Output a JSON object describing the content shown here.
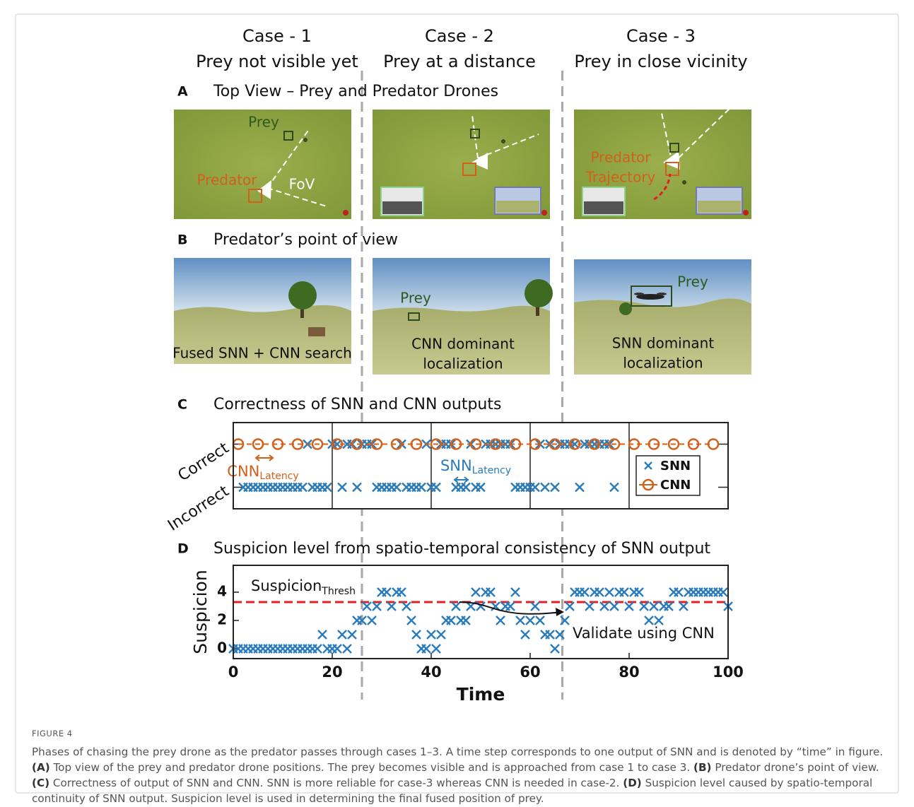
{
  "cases": [
    {
      "title": "Case - 1",
      "subtitle": "Prey not visible yet"
    },
    {
      "title": "Case - 2",
      "subtitle": "Prey at a distance"
    },
    {
      "title": "Case - 3",
      "subtitle": "Prey in close vicinity"
    }
  ],
  "case_boundaries": [
    26,
    66.5
  ],
  "panels": {
    "A": {
      "letter": "A",
      "title": "Top View – Prey and Predator Drones",
      "labels": {
        "prey": "Prey",
        "predator": "Predator",
        "fov": "FoV",
        "predator2": "Predator",
        "trajectory": "Trajectory"
      }
    },
    "B": {
      "letter": "B",
      "title": "Predator’s point of view",
      "labels": {
        "fused": "Fused SNN + CNN search",
        "prey2": "Prey",
        "cnn1": "CNN dominant",
        "cnn2": "localization",
        "prey3": "Prey",
        "snn1": "SNN dominant",
        "snn2": "localization"
      }
    }
  },
  "chart_data": [
    {
      "type": "scatter",
      "letter": "C",
      "title": "Correctness of SNN and CNN outputs",
      "xlim": [
        0,
        100
      ],
      "xticks": [
        0,
        20,
        40,
        60,
        80,
        100
      ],
      "ylim": [
        -0.5,
        1.5
      ],
      "yticks": [
        {
          "value": 0,
          "label": "Incorrect"
        },
        {
          "value": 1,
          "label": "Correct"
        }
      ],
      "grid": true,
      "legend": "right",
      "series": [
        {
          "name": "SNN",
          "color": "#2b7bba",
          "marker": "x",
          "x": [
            2,
            3,
            4,
            5,
            6,
            7,
            8,
            9,
            10,
            11,
            12,
            13,
            14,
            15,
            16,
            17,
            18,
            19,
            20,
            21,
            22,
            23,
            24,
            25,
            26,
            27,
            28,
            29,
            30,
            31,
            32,
            33,
            34,
            35,
            36,
            37,
            38,
            39,
            40,
            41,
            42,
            43,
            44,
            45,
            46,
            47,
            48,
            49,
            50,
            51,
            52,
            53,
            54,
            55,
            56,
            57,
            58,
            59,
            60,
            61,
            62,
            63,
            64,
            65,
            66,
            67,
            68,
            69,
            70,
            71,
            72,
            73,
            74,
            75,
            76,
            77
          ],
          "values": [
            0,
            0,
            0,
            0,
            0,
            0,
            0,
            0,
            0,
            0,
            0,
            0,
            0,
            1,
            0,
            0,
            0,
            0,
            1,
            1,
            0,
            1,
            1,
            0,
            1,
            1,
            1,
            0,
            0,
            0,
            0,
            0,
            1,
            0,
            0,
            0,
            0,
            1,
            0,
            0,
            1,
            1,
            1,
            0,
            0,
            0,
            1,
            0,
            0,
            1,
            1,
            1,
            1,
            1,
            1,
            0,
            0,
            0,
            0,
            0,
            1,
            0,
            1,
            0,
            1,
            1,
            1,
            1,
            0,
            1,
            1,
            1,
            1,
            1,
            1,
            0
          ]
        },
        {
          "name": "CNN",
          "color": "#d2601a",
          "marker": "o",
          "x": [
            1,
            5,
            9,
            13,
            17,
            21,
            25,
            29,
            33,
            37,
            41,
            45,
            49,
            53,
            57,
            61,
            65,
            69,
            73,
            77,
            81,
            85,
            89,
            93,
            97
          ],
          "values": [
            1,
            1,
            1,
            1,
            1,
            1,
            1,
            1,
            1,
            1,
            1,
            1,
            1,
            1,
            1,
            1,
            1,
            1,
            1,
            1,
            1,
            1,
            1,
            1,
            1
          ]
        }
      ],
      "annotations": [
        {
          "text": "CNN",
          "sub": "Latency",
          "color": "#d2601a"
        },
        {
          "text": "SNN",
          "sub": "Latency",
          "color": "#2b7bba"
        }
      ]
    },
    {
      "type": "scatter",
      "letter": "D",
      "title": "Suspicion level from spatio-temporal consistency of SNN output",
      "xlabel": "Time",
      "ylabel": "Suspicion",
      "xlim": [
        0,
        100
      ],
      "xticks": [
        0,
        20,
        40,
        60,
        80,
        100
      ],
      "ylim": [
        -0.7,
        5.9
      ],
      "yticks": [
        0,
        2,
        4
      ],
      "series": [
        {
          "color": "#2b7bba",
          "marker": "x",
          "x": [
            0,
            1,
            2,
            3,
            4,
            5,
            6,
            7,
            8,
            9,
            10,
            11,
            12,
            13,
            14,
            15,
            16,
            17,
            18,
            19,
            20,
            21,
            22,
            23,
            24,
            25,
            26,
            27,
            28,
            29,
            30,
            31,
            32,
            33,
            34,
            35,
            36,
            37,
            38,
            39,
            40,
            41,
            42,
            43,
            44,
            45,
            46,
            47,
            48,
            49,
            50,
            51,
            52,
            53,
            54,
            55,
            56,
            57,
            58,
            59,
            60,
            61,
            62,
            63,
            64,
            65,
            66,
            67,
            68,
            69,
            70,
            71,
            72,
            73,
            74,
            75,
            76,
            77,
            78,
            79,
            80,
            81,
            82,
            83,
            84,
            85,
            86,
            87,
            88,
            89,
            90,
            91,
            92,
            93,
            94,
            95,
            96,
            97,
            98,
            99,
            100
          ],
          "values": [
            0,
            0,
            0,
            0,
            0,
            0,
            0,
            0,
            0,
            0,
            0,
            0,
            0,
            0,
            0,
            0,
            0,
            0,
            1,
            0,
            0,
            0,
            1,
            0,
            1,
            2,
            2,
            3,
            2,
            3,
            4,
            4,
            3,
            4,
            4,
            3,
            2,
            1,
            0,
            0,
            1,
            0,
            1,
            2,
            2,
            3,
            2,
            2,
            3,
            4,
            3,
            4,
            4,
            3,
            2,
            3,
            3,
            4,
            2,
            1,
            2,
            3,
            2,
            1,
            1,
            0,
            1,
            2,
            3,
            4,
            4,
            4,
            3,
            4,
            4,
            3,
            4,
            3,
            4,
            4,
            3,
            4,
            4,
            3,
            2,
            3,
            2,
            3,
            3,
            4,
            4,
            3,
            4,
            4,
            4,
            4,
            4,
            4,
            4,
            4,
            3
          ]
        }
      ],
      "threshold": 3.3,
      "threshold_color": "#e02020",
      "threshold_label": "Suspicion",
      "threshold_label_sub": "Thresh",
      "annotation": "Validate using CNN"
    }
  ],
  "caption": {
    "label": "FIGURE 4",
    "segments": [
      {
        "t": "Phases of chasing the prey drone as the predator passes through cases 1–3. A time step corresponds to one output of SNN and is denoted by “time” in figure. "
      },
      {
        "b": "(A)"
      },
      {
        "t": " Top view of the prey and predator drone positions. The prey becomes visible and is approached from case 1 to case 3. "
      },
      {
        "b": "(B)"
      },
      {
        "t": " Predator drone’s point of view. "
      },
      {
        "b": "(C)"
      },
      {
        "t": " Correctness of output of SNN and CNN. SNN is more reliable for case-3 whereas CNN is needed in case-2. "
      },
      {
        "b": "(D)"
      },
      {
        "t": " Suspicion level caused by spatio-temporal continuity of SNN output. Suspicion level is used in determining the final fused position of prey."
      }
    ]
  }
}
